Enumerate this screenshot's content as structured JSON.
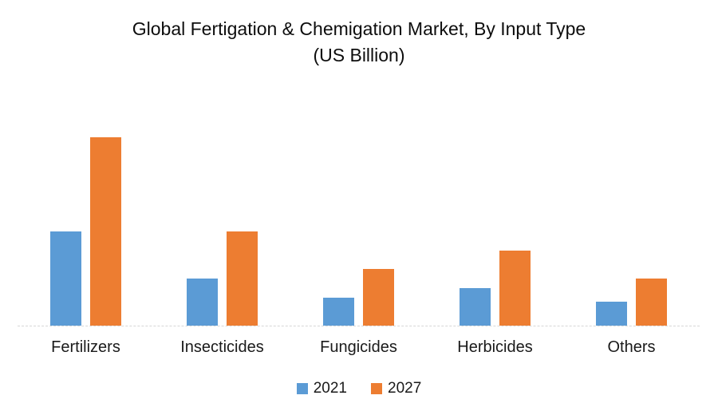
{
  "title": {
    "line1": "Global Fertigation & Chemigation Market, By Input Type",
    "line2": "(US Billion)"
  },
  "legend": [
    {
      "label": "2021",
      "color": "#5B9BD5"
    },
    {
      "label": "2027",
      "color": "#ED7D31"
    }
  ],
  "colors": {
    "series_2021": "#5B9BD5",
    "series_2027": "#ED7D31",
    "axis_line": "#D6D6D6"
  },
  "chart_data": {
    "type": "bar",
    "title": "Global Fertigation & Chemigation Market, By Input Type (US Billion)",
    "categories": [
      "Fertilizers",
      "Insecticides",
      "Fungicides",
      "Herbicides",
      "Others"
    ],
    "series": [
      {
        "name": "2021",
        "color": "#5B9BD5",
        "values": [
          5.0,
          2.5,
          1.5,
          2.0,
          1.25
        ]
      },
      {
        "name": "2027",
        "color": "#ED7D31",
        "values": [
          10.0,
          5.0,
          3.0,
          4.0,
          2.5
        ]
      }
    ],
    "xlabel": "",
    "ylabel": "US Billion",
    "ylim": [
      0,
      10.5
    ],
    "grid": false,
    "y_axis_visible": false,
    "legend_position": "bottom"
  }
}
